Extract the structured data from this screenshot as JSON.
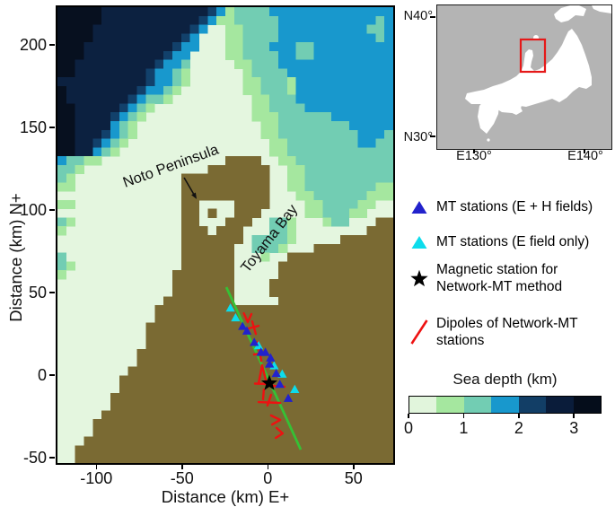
{
  "figure": {
    "type": "bathymetry-survey-map",
    "background": "#ffffff"
  },
  "main_map": {
    "x_axis": {
      "label": "Distance (km) E+",
      "ticks": [
        -100,
        -50,
        0,
        50
      ]
    },
    "y_axis": {
      "label": "Distance (km) N+",
      "ticks": [
        200,
        150,
        100,
        50,
        0,
        -50
      ]
    },
    "x_range_km": [
      -122.7,
      73.1
    ],
    "y_range_km": [
      -53.4,
      222.7
    ],
    "annotations": [
      {
        "id": "noto",
        "text": "Noto Peninsula",
        "x_km": -55.7,
        "y_km": 123.8,
        "rotation_deg": -20
      },
      {
        "id": "toyama",
        "text": "Toyama Bay",
        "x_km": 3.0,
        "y_km": 80.8,
        "rotation_deg": -52
      }
    ],
    "noto_arrow_km": [
      [
        -48.8,
        119.4
      ],
      [
        -41.5,
        106.4
      ]
    ],
    "survey_line_km": [
      [
        -24.2,
        53.1
      ],
      [
        19.2,
        -45.3
      ]
    ],
    "stations_eh_km": [
      [
        -14.7,
        29.3
      ],
      [
        -12.2,
        26.5
      ],
      [
        -7.9,
        19.6
      ],
      [
        -4.0,
        13.6
      ],
      [
        -1.4,
        13.6
      ],
      [
        1.6,
        10.2
      ],
      [
        1.0,
        6.5
      ],
      [
        4.9,
        0.8
      ],
      [
        7.0,
        -5.8
      ],
      [
        11.9,
        -14.3
      ]
    ],
    "stations_e_km": [
      [
        -21.8,
        40.4
      ],
      [
        -18.8,
        34.5
      ],
      [
        -5.4,
        17.6
      ],
      [
        3.7,
        5.4
      ],
      [
        8.4,
        0.4
      ],
      [
        15.7,
        -8.9
      ]
    ],
    "magnetic_station_km": [
      0.9,
      -5.1
    ],
    "dipoles_km": [
      [
        [
          -14.0,
          37.3
        ],
        [
          -11.7,
          31.9
        ],
        [
          -9.6,
          36.8
        ]
      ],
      [
        [
          -9.1,
          32.4
        ],
        [
          -7.0,
          24.8
        ]
      ],
      [
        [
          -11.2,
          28.1
        ],
        [
          -5.4,
          29.7
        ]
      ],
      [
        [
          -5.9,
          19.9
        ],
        [
          -3.8,
          8.5
        ]
      ],
      [
        [
          -8.0,
          12.3
        ],
        [
          -2.3,
          13.4
        ]
      ],
      [
        [
          -5.4,
          -5.1
        ],
        [
          -3.3,
          5.8
        ],
        [
          -0.7,
          -5.1
        ]
      ],
      [
        [
          -7.5,
          -5.3
        ],
        [
          2.5,
          -5.6
        ]
      ],
      [
        [
          2.5,
          -6.7
        ],
        [
          9.8,
          -7.2
        ]
      ],
      [
        [
          -2.3,
          -8.9
        ],
        [
          -2.8,
          -14.8
        ]
      ],
      [
        [
          1.9,
          -12.1
        ],
        [
          -0.2,
          -18.6
        ]
      ],
      [
        [
          -5.4,
          -16.5
        ],
        [
          7.2,
          -17.0
        ]
      ],
      [
        [
          1.9,
          -24.6
        ],
        [
          7.2,
          -27.3
        ],
        [
          2.5,
          -30.1
        ]
      ],
      [
        [
          5.1,
          -32.2
        ],
        [
          8.7,
          -35.5
        ],
        [
          4.6,
          -38.2
        ]
      ]
    ],
    "colors": {
      "station_eh": "#2222cc",
      "station_e": "#0ddcec",
      "magnetic": "#000000",
      "dipole": "#ee1111",
      "survey_line": "#35c135",
      "land": "#7a6a33"
    },
    "bathymetry": {
      "palette": {
        "0": "#e4f6df",
        "1": "#a5e79f",
        "2": "#72cdb3",
        "3": "#1898cd",
        "4": "#12416b",
        "5": "#0c2140",
        "6": "#07101f",
        "L": "#7a6a33"
      },
      "rows": [
        "66666555555555555431222233333333333333",
        "66666555555555554311222223333333333323",
        "66665555555555543001122223333333333223",
        "66665555555555430001122223333333333323",
        "66655555555554330001122233322333333333",
        "66655555555543300001122223322333333333",
        "66555555555433200000112223333333333333",
        "66555555554332100000012222333333333333",
        "55555555554332100000011222133333333333",
        "65555555543321000000011222133333333333",
        "65555555432210000000001122233333333333",
        "66555554321000000000001122223333333333",
        "66555543210000000000001112222223333333",
        "66555532100000000000000112222222233333",
        "66555432100000000000000112222222223332",
        "66554321000000000000000011222222223322",
        "66553210000000000000000011222222222222",
        "3221100000000000000LLLL001122222222222",
        "22100000000000000LLLLLLL00112222222222",
        "21000000000000LLLLLLLLLL00112222222222",
        "11000000000000LLLLLLLLLL00112222222211",
        "00000000000000LLLLLLLLLL00011222222111",
        "11000000000000LL0000LLLL00001122221100",
        "00000000000000LL0L00LLL000001122211000",
        "21000000000000LL000LLL00221000122000LL",
        "10000000000000LLL0LLL00022100000000LLL",
        "00000000000000LLLLLLL02222100000LLLLLL",
        "00000000000000LLLLLL002221000LLLLLLLLL",
        "20000000000000LLLLLL000100LLLLLLLLLLLL",
        "21000000000000LLLLLL00000LLLLLLLLLLLLL",
        "1000000000000LLLLLLL00000LLLLLLLLLLLLL",
        "0000000000000LLLLLLL0000LLLLLLLLLLLLLL",
        "0000000000000LLLLLLL0000LLLLLLLLLLLLLL",
        "000000000000LLLLLLLL00000LLLLLLLLLLLLL",
        "00000000000LLLLLLLLLLLLLLLLLLLLLLLLLLL",
        "00000000000LLLLLLLLLLLLLLLLLLLLLLLLLLL",
        "0000000000LLLLLLLLLLLLLLLLLLLLLLLLLLLL",
        "0000000000LLLLLLLLLLLLLLLLLLLLLLLLLLLL",
        "0000000000LLLLLLLLLLLLLLLLLLLLLLLLLLLL",
        "000000000LLLLLLLLLLLLLLLLLLLLLLLLLLLLL",
        "000000000LLLLLLLLLLLLLLLLLLLLLLLLLLLLL",
        "00000000LLLLLLLLLLLLLLLLLLLLLLLLLLLLLL",
        "0000000LLLLLLLLLLLLLLLLLLLLLLLLLLLLLLL",
        "0000000LLLLLLLLLLLLLLLLLLLLLLLLLLLLLLL",
        "000000LLLLLLLLLLLLLLLLLLLLLLLLLLLLLLLL",
        "000000LLLLLLLLLLLLLLLLLLLLLLLLLLLLLLLL",
        "00000LLLLLLLLLLLLLLLLLLLLLLLLLLLLLLLLL",
        "0000LLLLLLLLLLLLLLLLLLLLLLLLLLLLLLLLLL",
        "0000LLLLLLLLLLLLLLLLLLLLLLLLLLLLLLLLLL",
        "000LLLLLLLLLLLLLLLLLLLLLLLLLLLLLLLLLLL",
        "00LLLLLLLLLLLLLLLLLLLLLLLLLLLLLLLLLLLL",
        "00LLLLLLLLLLLLLLLLLLLLLLLLLLLLLLLLLLLL"
      ]
    }
  },
  "inset": {
    "labels": {
      "lat_top": "N40°",
      "lat_bottom": "N30°",
      "lon_left": "E130°",
      "lon_right": "E140°"
    },
    "study_area_box_color": "#e51919",
    "sea_color": "#b4b4b4",
    "land_color": "#ffffff"
  },
  "legend": {
    "items": [
      {
        "marker": "triangle-blue",
        "label": "MT stations (E + H fields)"
      },
      {
        "marker": "triangle-cyan",
        "label": "MT stations (E field only)"
      },
      {
        "marker": "star-black",
        "label_line1": "Magnetic station for",
        "label_line2": "Network-MT method"
      },
      {
        "marker": "red-line",
        "label_line1": "Dipoles of Network-MT",
        "label_line2": "stations"
      }
    ]
  },
  "colorbar": {
    "title": "Sea depth (km)",
    "tick_labels": [
      "0",
      "1",
      "2",
      "3"
    ],
    "tick_values_km": [
      0,
      1,
      2,
      3
    ],
    "range_km": [
      0,
      3.5
    ],
    "segment_colors": [
      "#e1f5dc",
      "#a5e79f",
      "#72cdb3",
      "#1898cd",
      "#123e66",
      "#0a1c3a",
      "#050d1b"
    ]
  }
}
